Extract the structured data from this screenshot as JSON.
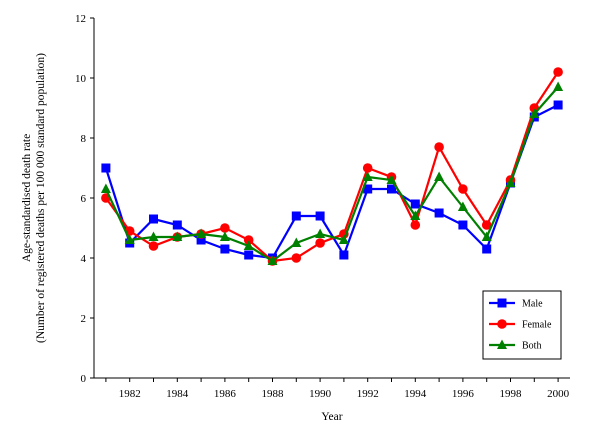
{
  "chart_data": {
    "type": "line",
    "title": "",
    "xlabel": "Year",
    "ylabel_lines": [
      "Age-standardised death rate",
      "(Number of registered deaths per 100 000 standard population)"
    ],
    "ylim": [
      0,
      12
    ],
    "yticks": [
      0,
      2,
      4,
      6,
      8,
      10,
      12
    ],
    "xlim": [
      1980.5,
      2000.5
    ],
    "xticks": [
      1982,
      1984,
      1986,
      1988,
      1990,
      1992,
      1994,
      1996,
      1998,
      2000
    ],
    "x": [
      1981,
      1982,
      1983,
      1984,
      1985,
      1986,
      1987,
      1988,
      1989,
      1990,
      1991,
      1992,
      1993,
      1994,
      1995,
      1996,
      1997,
      1998,
      1999,
      2000
    ],
    "series": [
      {
        "name": "Male",
        "color": "#0000ff",
        "marker": "square",
        "values": [
          7.0,
          4.5,
          5.3,
          5.1,
          4.6,
          4.3,
          4.1,
          4.0,
          5.4,
          5.4,
          4.1,
          6.3,
          6.3,
          5.8,
          5.5,
          5.1,
          4.3,
          6.5,
          8.7,
          9.1
        ]
      },
      {
        "name": "Female",
        "color": "#ff0000",
        "marker": "circle",
        "values": [
          6.0,
          4.9,
          4.4,
          4.7,
          4.8,
          5.0,
          4.6,
          3.9,
          4.0,
          4.5,
          4.8,
          7.0,
          6.7,
          5.1,
          7.7,
          6.3,
          5.1,
          6.6,
          9.0,
          10.2
        ]
      },
      {
        "name": "Both",
        "color": "#008000",
        "marker": "triangle",
        "values": [
          6.3,
          4.6,
          4.7,
          4.7,
          4.8,
          4.7,
          4.4,
          3.9,
          4.5,
          4.8,
          4.6,
          6.7,
          6.6,
          5.4,
          6.7,
          5.7,
          4.7,
          6.5,
          8.8,
          9.7
        ]
      }
    ],
    "legend_position": "bottom-right",
    "grid": false
  }
}
